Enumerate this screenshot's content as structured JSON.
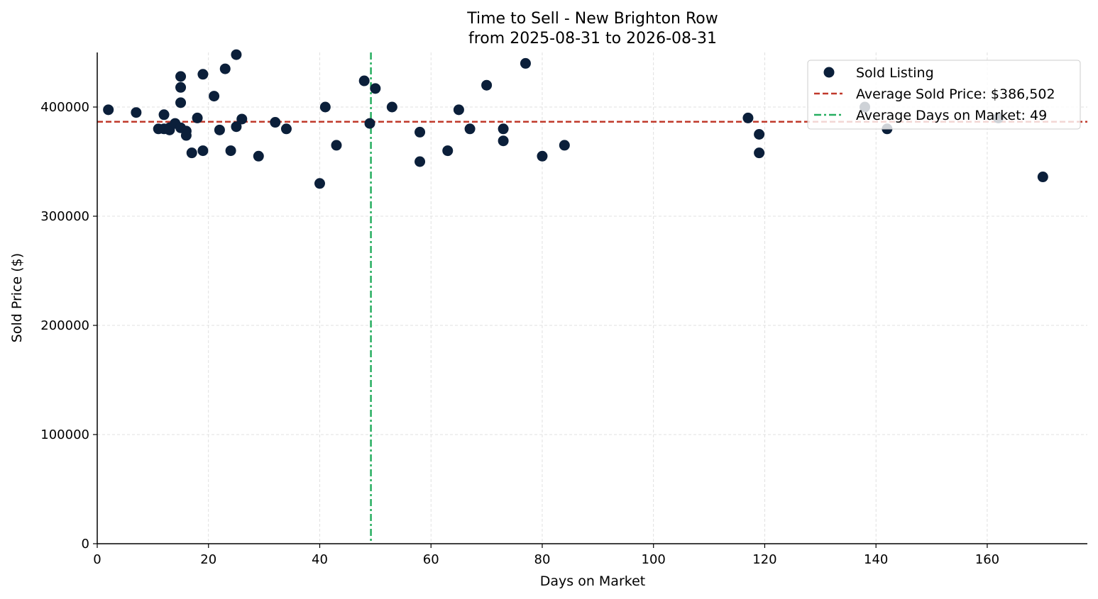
{
  "chart_data": {
    "type": "scatter",
    "title": "Time to Sell - New Brighton Row",
    "subtitle": "from 2025-08-31 to 2026-08-31",
    "xlabel": "Days on Market",
    "ylabel": "Sold Price ($)",
    "xlim": [
      0,
      178
    ],
    "ylim": [
      0,
      450000
    ],
    "xticks": [
      0,
      20,
      40,
      60,
      80,
      100,
      120,
      140,
      160
    ],
    "yticks": [
      0,
      100000,
      200000,
      300000,
      400000
    ],
    "grid": true,
    "legend_position": "top-right",
    "series": [
      {
        "name": "Sold Listing",
        "color": "#0b1f3a",
        "points": [
          [
            2,
            397500
          ],
          [
            7,
            395000
          ],
          [
            11,
            380000
          ],
          [
            12,
            393000
          ],
          [
            12,
            380000
          ],
          [
            13,
            381000
          ],
          [
            13,
            379000
          ],
          [
            14,
            385000
          ],
          [
            15,
            428000
          ],
          [
            15,
            418000
          ],
          [
            15,
            404000
          ],
          [
            15,
            381000
          ],
          [
            16,
            378000
          ],
          [
            16,
            374000
          ],
          [
            17,
            358000
          ],
          [
            18,
            390000
          ],
          [
            19,
            430000
          ],
          [
            19,
            360000
          ],
          [
            21,
            410000
          ],
          [
            22,
            379000
          ],
          [
            23,
            435000
          ],
          [
            24,
            360000
          ],
          [
            25,
            448000
          ],
          [
            25,
            382000
          ],
          [
            26,
            389000
          ],
          [
            29,
            355000
          ],
          [
            32,
            386000
          ],
          [
            34,
            380000
          ],
          [
            40,
            330000
          ],
          [
            41,
            400000
          ],
          [
            43,
            365000
          ],
          [
            48,
            424000
          ],
          [
            49,
            385000
          ],
          [
            50,
            417000
          ],
          [
            53,
            400000
          ],
          [
            58,
            377000
          ],
          [
            58,
            350000
          ],
          [
            63,
            360000
          ],
          [
            65,
            397500
          ],
          [
            67,
            380000
          ],
          [
            70,
            420000
          ],
          [
            73,
            380000
          ],
          [
            73,
            369000
          ],
          [
            77,
            440000
          ],
          [
            80,
            355000
          ],
          [
            84,
            365000
          ],
          [
            117,
            390000
          ],
          [
            119,
            375000
          ],
          [
            119,
            358000
          ],
          [
            138,
            400000
          ],
          [
            142,
            380000
          ],
          [
            162,
            390000
          ],
          [
            170,
            336000
          ]
        ]
      }
    ],
    "reference_lines": [
      {
        "name": "Average Sold Price: $386,502",
        "orientation": "horizontal",
        "value": 386502,
        "color": "#c0392b",
        "style": "dashed"
      },
      {
        "name": "Average Days on Market: 49",
        "orientation": "vertical",
        "value": 49.2,
        "color": "#27ae60",
        "style": "dashdot"
      }
    ]
  }
}
